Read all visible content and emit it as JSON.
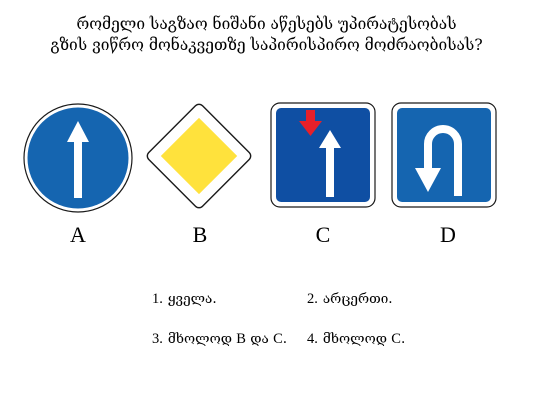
{
  "question": {
    "line1": "რომელი საგზაო ნიშანი აწესებს უპირატესობას",
    "line2": "გზის ვიწრო მონაკვეთზე საპირისპირო მოძრაობისას?"
  },
  "signs": [
    {
      "letter": "A",
      "icon": "straight-ahead-only-icon",
      "color": "#1565b0"
    },
    {
      "letter": "B",
      "icon": "priority-road-icon",
      "color": "#ffe23c"
    },
    {
      "letter": "C",
      "icon": "priority-over-oncoming-traffic-icon",
      "color": "#0f4fa3",
      "accent": "#e6202a"
    },
    {
      "letter": "D",
      "icon": "u-turn-icon",
      "color": "#1565b0"
    }
  ],
  "answers": [
    {
      "number": "1.",
      "text": "ყველა."
    },
    {
      "number": "2.",
      "text": "არცერთი."
    },
    {
      "number": "3.",
      "prefix": "მხოლოდ ",
      "b": "B",
      "mid": " და ",
      "c": "C",
      "suffix": "."
    },
    {
      "number": "4.",
      "prefix": "მხოლოდ ",
      "c": "C",
      "suffix": "."
    }
  ]
}
